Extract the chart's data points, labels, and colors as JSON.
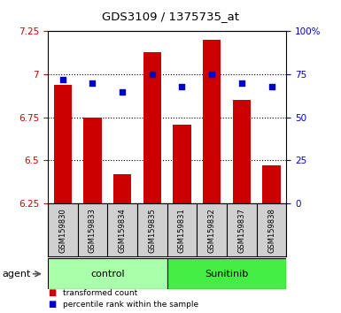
{
  "title": "GDS3109 / 1375735_at",
  "samples": [
    "GSM159830",
    "GSM159833",
    "GSM159834",
    "GSM159835",
    "GSM159831",
    "GSM159832",
    "GSM159837",
    "GSM159838"
  ],
  "bar_values": [
    6.94,
    6.75,
    6.42,
    7.13,
    6.71,
    7.2,
    6.85,
    6.47
  ],
  "percentile_values": [
    72,
    70,
    65,
    75,
    68,
    75,
    70,
    68
  ],
  "groups": [
    {
      "label": "control",
      "indices": [
        0,
        1,
        2,
        3
      ],
      "color": "#aaffaa"
    },
    {
      "label": "Sunitinib",
      "indices": [
        4,
        5,
        6,
        7
      ],
      "color": "#44ee44"
    }
  ],
  "group_label": "agent",
  "ylim_left": [
    6.25,
    7.25
  ],
  "ylim_right": [
    0,
    100
  ],
  "yticks_left": [
    6.25,
    6.5,
    6.75,
    7.0,
    7.25
  ],
  "yticks_right": [
    0,
    25,
    50,
    75,
    100
  ],
  "ytick_labels_right": [
    "0",
    "25",
    "50",
    "75",
    "100%"
  ],
  "bar_color": "#cc0000",
  "dot_color": "#0000cc",
  "bar_width": 0.6,
  "bar_baseline": 6.25,
  "legend_items": [
    {
      "color": "#cc0000",
      "label": "transformed count"
    },
    {
      "color": "#0000cc",
      "label": "percentile rank within the sample"
    }
  ],
  "ax_bg_color": "#ffffff",
  "tick_label_color_left": "#cc0000",
  "tick_label_color_right": "#0000cc",
  "xlabel_area_color": "#d0d0d0"
}
